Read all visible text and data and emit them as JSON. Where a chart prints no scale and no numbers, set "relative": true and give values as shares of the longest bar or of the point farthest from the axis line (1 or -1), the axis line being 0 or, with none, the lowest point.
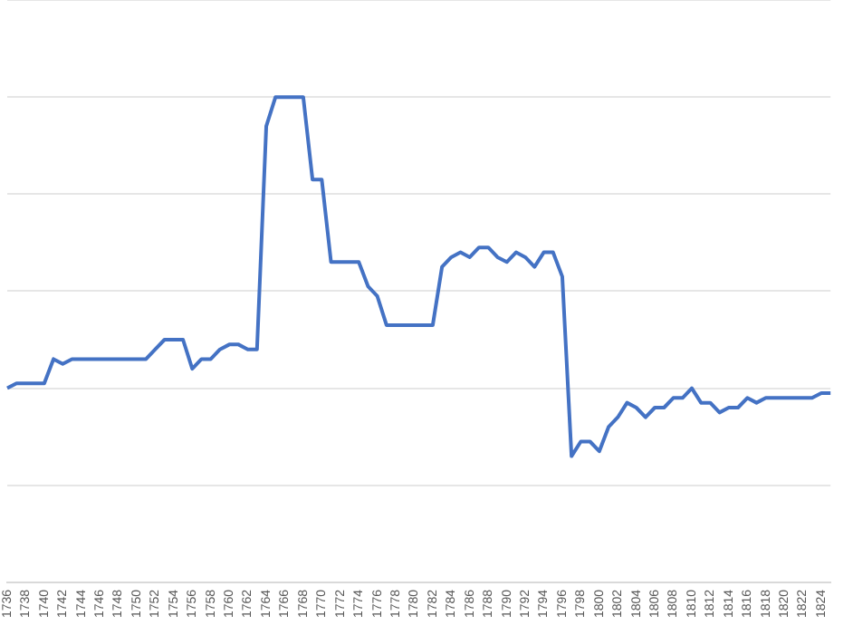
{
  "chart_data": {
    "type": "line",
    "relative": true,
    "grid": "y",
    "marker": "none",
    "line_style": "solid",
    "categories": [
      "1736",
      null,
      "1738",
      null,
      "1740",
      null,
      "1742",
      null,
      "1744",
      null,
      "1746",
      null,
      "1748",
      null,
      "1750",
      null,
      "1752",
      null,
      "1754",
      null,
      "1756",
      null,
      "1758",
      null,
      "1760",
      null,
      "1762",
      null,
      "1764",
      null,
      "1766",
      null,
      "1768",
      null,
      "1770",
      null,
      "1772",
      null,
      "1774",
      null,
      "1776",
      null,
      "1778",
      null,
      "1780",
      null,
      "1782",
      null,
      "1784",
      null,
      "1786",
      null,
      "1788",
      null,
      "1790",
      null,
      "1792",
      null,
      "1794",
      null,
      "1796",
      null,
      "1798",
      null,
      "1800",
      null,
      "1802",
      null,
      "1804",
      null,
      "1806",
      null,
      "1808",
      null,
      "1810",
      null,
      "1812",
      null,
      "1814",
      null,
      "1816",
      null,
      "1818",
      null,
      "1820",
      null,
      "1822",
      null,
      "1824",
      null
    ],
    "series": [
      {
        "color": "#4472c4",
        "values": [
          0.4,
          0.41,
          0.41,
          0.41,
          0.41,
          0.46,
          0.45,
          0.46,
          0.46,
          0.46,
          0.46,
          0.46,
          0.46,
          0.46,
          0.46,
          0.46,
          0.48,
          0.5,
          0.5,
          0.5,
          0.44,
          0.46,
          0.46,
          0.48,
          0.49,
          0.49,
          0.48,
          0.48,
          0.94,
          1,
          1,
          1,
          1,
          0.83,
          0.83,
          0.66,
          0.66,
          0.66,
          0.66,
          0.61,
          0.59,
          0.53,
          0.53,
          0.53,
          0.53,
          0.53,
          0.53,
          0.65,
          0.67,
          0.68,
          0.67,
          0.69,
          0.69,
          0.67,
          0.66,
          0.68,
          0.67,
          0.65,
          0.68,
          0.68,
          0.63,
          0.26,
          0.29,
          0.29,
          0.27,
          0.32,
          0.34,
          0.37,
          0.36,
          0.34,
          0.36,
          0.36,
          0.38,
          0.38,
          0.4,
          0.37,
          0.37,
          0.35,
          0.36,
          0.36,
          0.38,
          0.37,
          0.38,
          0.38,
          0.38,
          0.38,
          0.38,
          0.38,
          0.39,
          0.39
        ]
      }
    ]
  }
}
